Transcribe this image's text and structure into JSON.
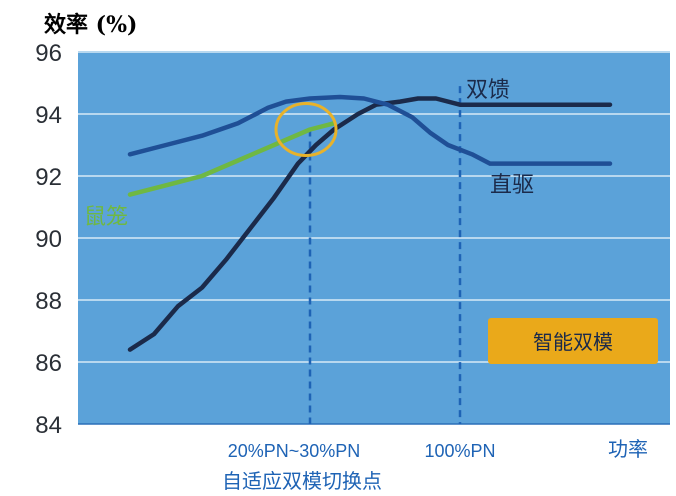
{
  "chart_data": {
    "type": "line",
    "ylabel": "效率 (%)",
    "xlabel": "功率",
    "ylim": [
      84,
      96
    ],
    "xlim": [
      0,
      100
    ],
    "yticks": [
      84,
      86,
      88,
      90,
      92,
      94,
      96
    ],
    "xtick_labels": [
      {
        "label": "20%PN~30%PN",
        "x": 40
      },
      {
        "label": "100%PN",
        "x": 65
      }
    ],
    "switch_label": "自适应双模切换点",
    "grid": true,
    "series": [
      {
        "name": "双馈",
        "color": "#1b2a4a",
        "x": [
          10,
          14,
          18,
          22,
          26,
          30,
          34,
          38,
          41,
          44,
          48,
          51,
          55,
          58,
          61,
          65,
          70,
          75,
          80,
          90
        ],
        "y": [
          86.4,
          86.9,
          87.8,
          88.4,
          89.3,
          90.3,
          91.3,
          92.4,
          93.0,
          93.5,
          94.0,
          94.3,
          94.4,
          94.5,
          94.5,
          94.3,
          94.3,
          94.3,
          94.3,
          94.3
        ]
      },
      {
        "name": "直驱",
        "color": "#1f4f96",
        "x": [
          10,
          16,
          22,
          28,
          33,
          36,
          40,
          45,
          49,
          53,
          57,
          60,
          63,
          67,
          70,
          75,
          80,
          90
        ],
        "y": [
          92.7,
          93.0,
          93.3,
          93.7,
          94.2,
          94.4,
          94.5,
          94.55,
          94.5,
          94.3,
          93.9,
          93.4,
          93.0,
          92.7,
          92.4,
          92.4,
          92.4,
          92.4
        ]
      },
      {
        "name": "鼠笼",
        "color": "#6fb843",
        "x": [
          10,
          16,
          22,
          28,
          34,
          40,
          44
        ],
        "y": [
          91.4,
          91.7,
          92.0,
          92.5,
          93.0,
          93.5,
          93.7
        ]
      }
    ],
    "annotation": "智能双模",
    "colors": {
      "plot_bg": "#5ba2d9",
      "grid": "#b8d8ef",
      "marker_ring": "#e8b22a",
      "badge_bg": "#eaa91a",
      "axis_label": "#1e63b5",
      "green_label": "#6fb843"
    }
  }
}
